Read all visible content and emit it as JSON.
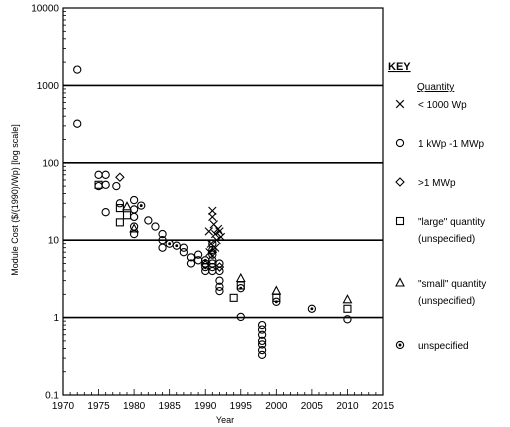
{
  "chart_data": {
    "type": "scatter",
    "title": "",
    "xlabel": "Year",
    "ylabel": "Module Cost ($/(1990)/Wp) [log scale]",
    "xlim": [
      1970,
      2015
    ],
    "ylim": [
      0.1,
      10000
    ],
    "yscale": "log",
    "xticks": [
      "1970",
      "1975",
      "1980",
      "1985",
      "1990",
      "1995",
      "2000",
      "2005",
      "2010",
      "2015"
    ],
    "yticks": [
      "0.1",
      "1",
      "10",
      "100",
      "1000",
      "10000"
    ],
    "grid": "horizontal lines at 1, 10, 100, 1000",
    "key": {
      "title": "KEY",
      "heading": "Quantity",
      "entries": [
        {
          "marker": "x",
          "lines": [
            "< 1000 Wp"
          ]
        },
        {
          "marker": "o",
          "lines": [
            "1 kWp -1 MWp"
          ]
        },
        {
          "marker": "diamond",
          "lines": [
            ">1 MWp"
          ]
        },
        {
          "marker": "square",
          "lines": [
            "\"large\" quantity",
            "(unspecified)"
          ]
        },
        {
          "marker": "triangle",
          "lines": [
            "\"small\" quantity",
            "(unspecified)"
          ]
        },
        {
          "marker": "dotcircle",
          "lines": [
            "unspecified"
          ]
        }
      ]
    },
    "series": [
      {
        "marker": "x",
        "points": [
          [
            1990.5,
            13
          ],
          [
            1990.8,
            9
          ],
          [
            1991,
            24
          ],
          [
            1991,
            20
          ],
          [
            1991.2,
            16
          ],
          [
            1991.4,
            12
          ],
          [
            1991.6,
            10
          ],
          [
            1991.8,
            14
          ],
          [
            1992,
            13
          ],
          [
            1992.2,
            11
          ],
          [
            1990.6,
            7
          ],
          [
            1991.4,
            8
          ]
        ]
      },
      {
        "marker": "o",
        "points": [
          [
            1972,
            1600
          ],
          [
            1972,
            320
          ],
          [
            1975,
            70
          ],
          [
            1975,
            50
          ],
          [
            1976,
            70
          ],
          [
            1976,
            52
          ],
          [
            1976,
            23
          ],
          [
            1977.5,
            50
          ],
          [
            1978,
            30
          ],
          [
            1980,
            33
          ],
          [
            1980,
            25
          ],
          [
            1980,
            20
          ],
          [
            1980,
            15
          ],
          [
            1980,
            12
          ],
          [
            1982,
            18
          ],
          [
            1983,
            15
          ],
          [
            1984,
            12
          ],
          [
            1984,
            10
          ],
          [
            1984,
            8
          ],
          [
            1987,
            8
          ],
          [
            1987,
            7
          ],
          [
            1988,
            6
          ],
          [
            1988,
            5
          ],
          [
            1989,
            6.5
          ],
          [
            1989,
            5.5
          ],
          [
            1990,
            5
          ],
          [
            1990,
            4.5
          ],
          [
            1990,
            4
          ],
          [
            1991,
            9
          ],
          [
            1991,
            7.5
          ],
          [
            1991,
            6.5
          ],
          [
            1991,
            5.5
          ],
          [
            1991,
            5
          ],
          [
            1991,
            4.5
          ],
          [
            1991,
            4
          ],
          [
            1992,
            5
          ],
          [
            1992,
            4
          ],
          [
            1992,
            3
          ],
          [
            1992,
            2.5
          ],
          [
            1992,
            2.2
          ],
          [
            1995,
            1.02
          ],
          [
            1998,
            0.8
          ],
          [
            1998,
            0.7
          ],
          [
            1998,
            0.6
          ],
          [
            1998,
            0.5
          ],
          [
            1998,
            0.45
          ],
          [
            1998,
            0.38
          ],
          [
            1998,
            0.33
          ],
          [
            2010,
            0.95
          ]
        ]
      },
      {
        "marker": "diamond",
        "points": [
          [
            1978,
            65
          ],
          [
            1990,
            4.8
          ],
          [
            1991,
            7
          ],
          [
            1992,
            4.5
          ]
        ]
      },
      {
        "marker": "square",
        "points": [
          [
            1975,
            52
          ],
          [
            1978,
            26
          ],
          [
            1978,
            17
          ],
          [
            1979,
            21
          ],
          [
            1994,
            1.8
          ],
          [
            1995,
            2.6
          ],
          [
            2000,
            1.8
          ],
          [
            2010,
            1.3
          ]
        ]
      },
      {
        "marker": "triangle",
        "points": [
          [
            1979,
            27
          ],
          [
            1980,
            14
          ],
          [
            1995,
            3.2
          ],
          [
            2000,
            2.2
          ],
          [
            2010,
            1.7
          ]
        ]
      },
      {
        "marker": "dotcircle",
        "points": [
          [
            1981,
            28
          ],
          [
            1985,
            9
          ],
          [
            1986,
            8.5
          ],
          [
            1990,
            5.5
          ],
          [
            1995,
            2.4
          ],
          [
            2000,
            1.6
          ],
          [
            2005,
            1.3
          ]
        ]
      }
    ]
  }
}
